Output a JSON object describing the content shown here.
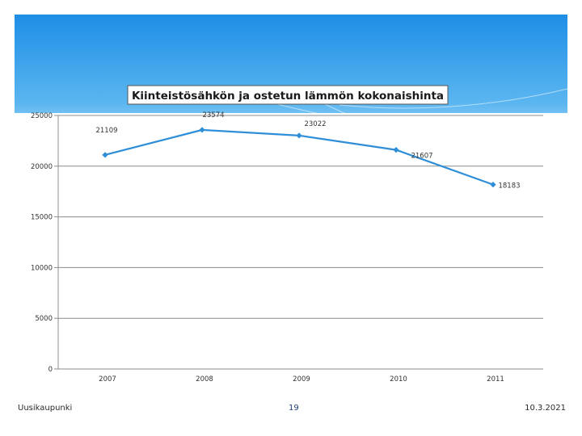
{
  "chart_data": {
    "type": "line",
    "title": "Kiinteistösähkön ja ostetun lämmön kokonaishinta",
    "categories": [
      "2007",
      "2008",
      "2009",
      "2010",
      "2011"
    ],
    "series": [
      {
        "values": [
          21109,
          23574,
          23022,
          21607,
          18183
        ]
      }
    ],
    "data_labels": [
      "21109",
      "23574",
      "23022",
      "21607",
      "18183"
    ],
    "y_ticks": [
      0,
      5000,
      10000,
      15000,
      20000,
      25000
    ],
    "ylim": [
      0,
      25000
    ],
    "grid": true,
    "legend": "none",
    "line_color": "#2e8fd8"
  },
  "footer": {
    "left": "Uusikaupunki",
    "center": "19",
    "right": "10.3.2021"
  }
}
